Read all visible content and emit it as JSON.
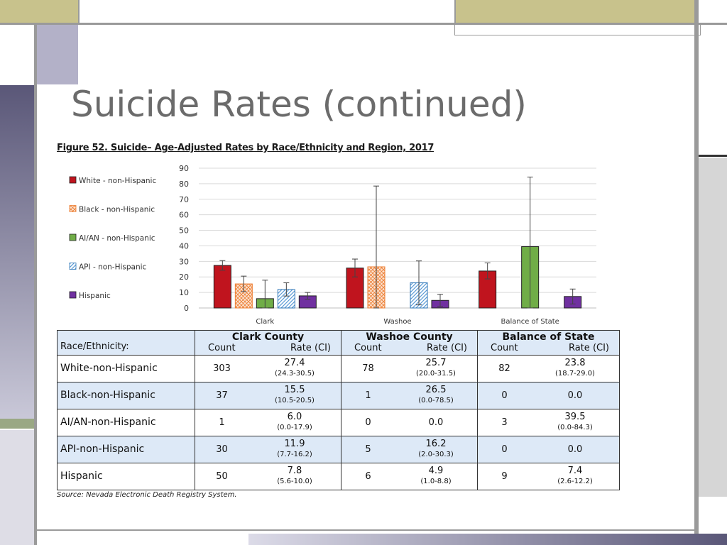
{
  "slide": {
    "title": "Suicide Rates (continued)"
  },
  "figure": {
    "title": "Figure 52. Suicide– Age-Adjusted Rates by Race/Ethnicity and Region, 2017"
  },
  "chart_data": {
    "type": "bar",
    "categories": [
      "Clark",
      "Washoe",
      "Balance of State"
    ],
    "ylim": [
      0,
      90
    ],
    "yticks": [
      0,
      10,
      20,
      30,
      40,
      50,
      60,
      70,
      80,
      90
    ],
    "grid": true,
    "legend_position": "left",
    "series": [
      {
        "name": "White - non-Hispanic",
        "color": "#c0141e",
        "pattern": "solid",
        "values": [
          27.4,
          25.7,
          23.8
        ],
        "ci_low": [
          24.3,
          20.0,
          18.7
        ],
        "ci_high": [
          30.5,
          31.5,
          29.0
        ]
      },
      {
        "name": "Black - non-Hispanic",
        "color": "#f4b183",
        "pattern": "crosshatch",
        "values": [
          15.5,
          26.5,
          0.0
        ],
        "ci_low": [
          10.5,
          0.0,
          0.0
        ],
        "ci_high": [
          20.5,
          78.5,
          0.0
        ]
      },
      {
        "name": "AI/AN - non-Hispanic",
        "color": "#70ad47",
        "pattern": "solid",
        "values": [
          6.0,
          0.0,
          39.5
        ],
        "ci_low": [
          0.0,
          0.0,
          0.0
        ],
        "ci_high": [
          17.9,
          0.0,
          84.3
        ]
      },
      {
        "name": "API - non-Hispanic",
        "color": "#9dc3e6",
        "pattern": "diagonal",
        "values": [
          11.9,
          16.2,
          0.0
        ],
        "ci_low": [
          7.7,
          2.0,
          0.0
        ],
        "ci_high": [
          16.2,
          30.3,
          0.0
        ]
      },
      {
        "name": "Hispanic",
        "color": "#7030a0",
        "pattern": "solid",
        "values": [
          7.8,
          4.9,
          7.4
        ],
        "ci_low": [
          5.6,
          1.0,
          2.6
        ],
        "ci_high": [
          10.0,
          8.8,
          12.2
        ]
      }
    ]
  },
  "table": {
    "header": {
      "race_label": "Race/Ethnicity:",
      "regions": [
        "Clark County",
        "Washoe County",
        "Balance of State"
      ],
      "count_label": "Count",
      "rate_label": "Rate (CI)"
    },
    "rows": [
      {
        "race": "White-non-Hispanic",
        "cells": [
          {
            "count": "303",
            "rate": "27.4",
            "ci": "(24.3-30.5)"
          },
          {
            "count": "78",
            "rate": "25.7",
            "ci": "(20.0-31.5)"
          },
          {
            "count": "82",
            "rate": "23.8",
            "ci": "(18.7-29.0)"
          }
        ]
      },
      {
        "race": "Black-non-Hispanic",
        "cells": [
          {
            "count": "37",
            "rate": "15.5",
            "ci": "(10.5-20.5)"
          },
          {
            "count": "1",
            "rate": "26.5",
            "ci": "(0.0-78.5)"
          },
          {
            "count": "0",
            "rate": "0.0",
            "ci": ""
          }
        ]
      },
      {
        "race": "AI/AN-non-Hispanic",
        "cells": [
          {
            "count": "1",
            "rate": "6.0",
            "ci": "(0.0-17.9)"
          },
          {
            "count": "0",
            "rate": "0.0",
            "ci": ""
          },
          {
            "count": "3",
            "rate": "39.5",
            "ci": "(0.0-84.3)"
          }
        ]
      },
      {
        "race": "API-non-Hispanic",
        "cells": [
          {
            "count": "30",
            "rate": "11.9",
            "ci": "(7.7-16.2)"
          },
          {
            "count": "5",
            "rate": "16.2",
            "ci": "(2.0-30.3)"
          },
          {
            "count": "0",
            "rate": "0.0",
            "ci": ""
          }
        ]
      },
      {
        "race": "Hispanic",
        "cells": [
          {
            "count": "50",
            "rate": "7.8",
            "ci": "(5.6-10.0)"
          },
          {
            "count": "6",
            "rate": "4.9",
            "ci": "(1.0-8.8)"
          },
          {
            "count": "9",
            "rate": "7.4",
            "ci": "(2.6-12.2)"
          }
        ]
      }
    ]
  },
  "source": "Source: Nevada Electronic Death Registry System."
}
